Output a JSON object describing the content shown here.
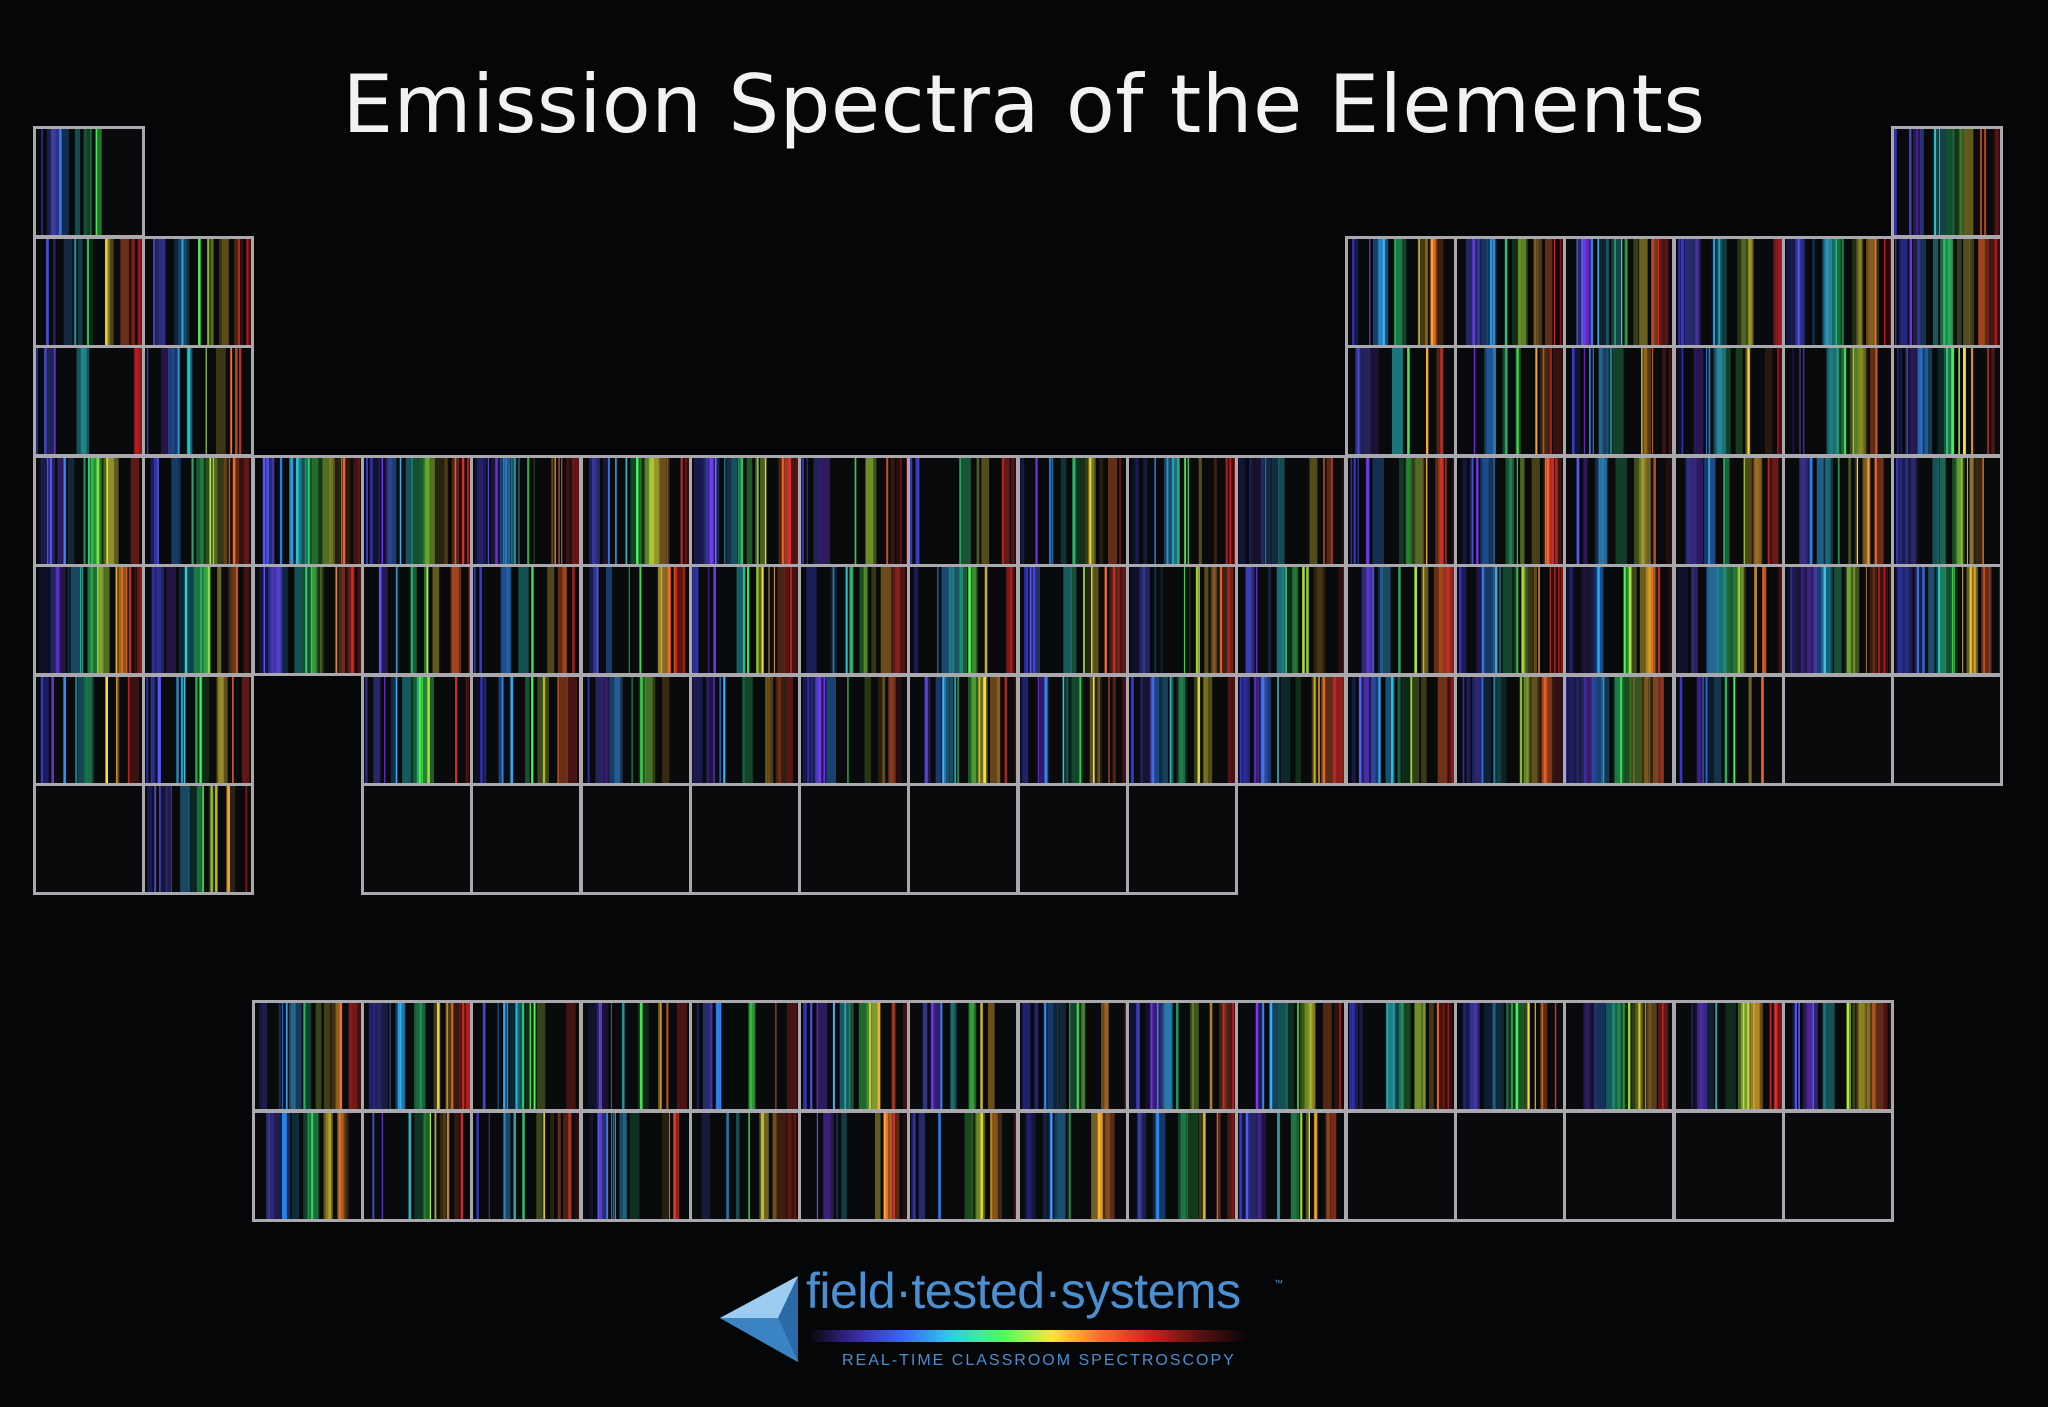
{
  "title": "Emission Spectra of the Elements",
  "palette": {
    "background": "#050608",
    "grid_line": "#a9a9ad",
    "title_text": "#f2f2f2",
    "brand_blue": "#4a8fd0"
  },
  "spectrum_colors": [
    "#3a3acf",
    "#5a5cff",
    "#7a3cff",
    "#2f8cff",
    "#39b4ff",
    "#2fd3e0",
    "#2fd07a",
    "#4cff5a",
    "#b8f040",
    "#ffe23a",
    "#ffb030",
    "#ff6a2a",
    "#e8302a",
    "#b81c1c"
  ],
  "logo": {
    "name": "field·tested·systems",
    "trademark": "™",
    "tagline": "REAL-TIME CLASSROOM SPECTROSCOPY",
    "rainbow_colors": [
      "#3a2aa0",
      "#3a6cff",
      "#2fd3e0",
      "#4cff5a",
      "#ffe23a",
      "#ff6a2a",
      "#d02020",
      "#5a1010"
    ]
  }
}
